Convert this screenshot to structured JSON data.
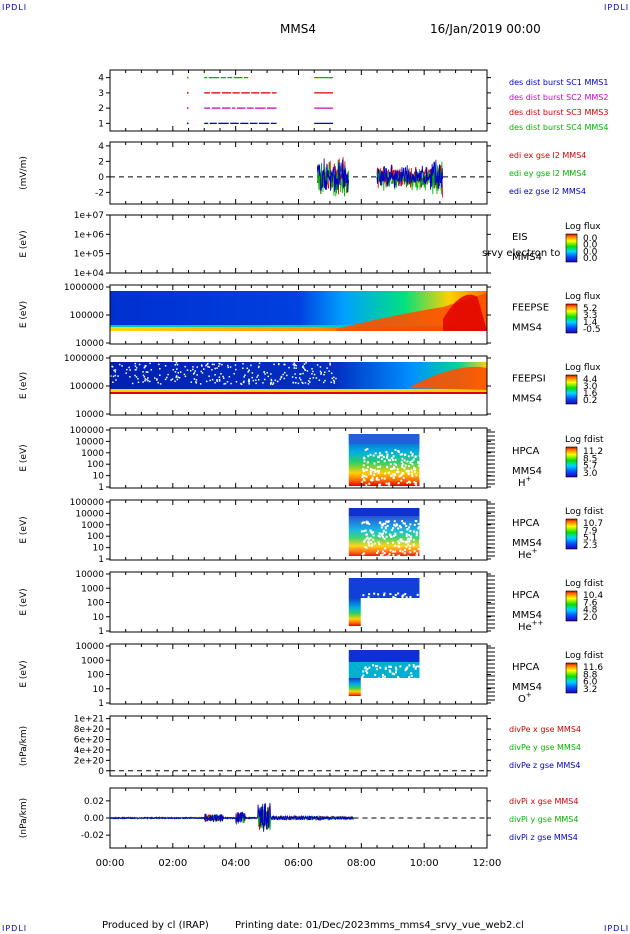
{
  "header": {
    "corner_label": "IPDLI",
    "title": "MMS4",
    "date_time": "16/Jan/2019 00:00"
  },
  "footer": {
    "produced_by": "Produced by cl (IRAP)",
    "printing_date": "Printing date: 01/Dec/2023",
    "filename": "mms_mms4_srvy_vue_web2.cl"
  },
  "colors": {
    "black": "#000000",
    "red": "#d40000",
    "green": "#00b400",
    "blue": "#0000c8",
    "magenta": "#d000d0",
    "dark_blue": "#000080"
  },
  "chart_data": [
    {
      "type": "line",
      "name": "burst-coverage",
      "yticks": [
        "4",
        "3",
        "2",
        "1"
      ],
      "ylim": [
        0.5,
        4.5
      ],
      "legend": [
        {
          "text": "des dist burst SC1 MMS1",
          "color": "#0000c8"
        },
        {
          "text": "des dist burst SC2 MMS2",
          "color": "#d000d0"
        },
        {
          "text": "des dist burst SC3 MMS3",
          "color": "#d40000"
        },
        {
          "text": "des dist burst SC4 MMS4",
          "color": "#00b400"
        }
      ],
      "series": [
        {
          "level": 4,
          "color": "#00b400",
          "intervals": [
            [
              2.45,
              2.46
            ],
            [
              3.0,
              4.4
            ],
            [
              6.5,
              7.1
            ]
          ]
        },
        {
          "level": 3,
          "color": "#d40000",
          "intervals": [
            [
              2.45,
              2.46
            ],
            [
              3.0,
              5.3
            ],
            [
              6.5,
              7.1
            ]
          ]
        },
        {
          "level": 2,
          "color": "#d000d0",
          "intervals": [
            [
              2.45,
              2.46
            ],
            [
              3.0,
              5.3
            ],
            [
              6.5,
              7.1
            ]
          ]
        },
        {
          "level": 1,
          "color": "#0000c8",
          "intervals": [
            [
              2.45,
              2.46
            ],
            [
              3.0,
              5.3
            ],
            [
              6.5,
              7.1
            ]
          ]
        }
      ]
    },
    {
      "type": "line",
      "name": "edi-e-field",
      "ylabel": "(mV/m)",
      "yticks": [
        "4",
        "2",
        "0",
        "-2"
      ],
      "ylim": [
        -3.5,
        4.5
      ],
      "legend": [
        {
          "text": "edi ex gse l2 MMS4",
          "color": "#d40000"
        },
        {
          "text": "edi ey gse l2 MMS4",
          "color": "#00b400"
        },
        {
          "text": "edi ez gse l2 MMS4",
          "color": "#0000c8"
        }
      ]
    },
    {
      "type": "heatmap",
      "name": "eis",
      "ylabel": "E (eV)",
      "yticks": [
        "1e+07",
        "1e+06",
        "1e+05",
        "1e+04"
      ],
      "label_lines": [
        "EIS",
        "MMS4"
      ],
      "overlap_text": "srvy electron to",
      "colorbar_title": "Log flux",
      "colorbar_ticks": [
        "0.0",
        "0.0",
        "0.0",
        "0.0"
      ]
    },
    {
      "type": "heatmap",
      "name": "feepse",
      "ylabel": "E (eV)",
      "yticks": [
        "1000000",
        "100000",
        "10000"
      ],
      "label_lines": [
        "FEEPSE",
        "MMS4"
      ],
      "colorbar_title": "Log flux",
      "colorbar_ticks": [
        "5.2",
        "3.3",
        "1.4",
        "-0.5"
      ]
    },
    {
      "type": "heatmap",
      "name": "feepsi",
      "ylabel": "E (eV)",
      "yticks": [
        "1000000",
        "100000",
        "10000"
      ],
      "label_lines": [
        "FEEPSI",
        "MMS4"
      ],
      "colorbar_title": "Log flux",
      "colorbar_ticks": [
        "4.4",
        "3.0",
        "1.6",
        "0.2"
      ]
    },
    {
      "type": "heatmap",
      "name": "hpca-h",
      "ylabel": "E (eV)",
      "yticks": [
        "100000",
        "10000",
        "1000",
        "100",
        "10",
        "1"
      ],
      "label_lines": [
        "HPCA",
        "MMS4"
      ],
      "species": "H",
      "species_sup": "+",
      "colorbar_title": "Log fdist",
      "colorbar_ticks": [
        "11.2",
        "8.5",
        "5.7",
        "3.0"
      ]
    },
    {
      "type": "heatmap",
      "name": "hpca-he",
      "ylabel": "E (eV)",
      "yticks": [
        "100000",
        "10000",
        "1000",
        "100",
        "10",
        "1"
      ],
      "label_lines": [
        "HPCA",
        "MMS4"
      ],
      "species": "He",
      "species_sup": "+",
      "colorbar_title": "Log fdist",
      "colorbar_ticks": [
        "10.7",
        "7.9",
        "5.1",
        "2.3"
      ]
    },
    {
      "type": "heatmap",
      "name": "hpca-hepp",
      "ylabel": "E (eV)",
      "yticks": [
        "10000",
        "1000",
        "100",
        "10",
        "1"
      ],
      "label_lines": [
        "HPCA",
        "MMS4"
      ],
      "species": "He",
      "species_sup": "++",
      "colorbar_title": "Log fdist",
      "colorbar_ticks": [
        "10.4",
        "7.6",
        "4.8",
        "2.0"
      ]
    },
    {
      "type": "heatmap",
      "name": "hpca-o",
      "ylabel": "E (eV)",
      "yticks": [
        "10000",
        "1000",
        "100",
        "10",
        "1"
      ],
      "label_lines": [
        "HPCA",
        "MMS4"
      ],
      "species": "O",
      "species_sup": "+",
      "colorbar_title": "Log fdist",
      "colorbar_ticks": [
        "11.6",
        "8.8",
        "6.0",
        "3.2"
      ]
    },
    {
      "type": "line",
      "name": "div-pe",
      "ylabel": "(nPa/km)",
      "yticks": [
        "1e+21",
        "8e+20",
        "6e+20",
        "4e+20",
        "2e+20",
        "0"
      ],
      "ylim": [
        -1e+20,
        1.05e+21
      ],
      "legend": [
        {
          "text": "divPe x gse MMS4",
          "color": "#d40000"
        },
        {
          "text": "divPe y gse MMS4",
          "color": "#00b400"
        },
        {
          "text": "divPe z gse MMS4",
          "color": "#0000c8"
        }
      ]
    },
    {
      "type": "line",
      "name": "div-pi",
      "ylabel": "(nPa/km)",
      "yticks": [
        "0.02",
        "0.00",
        "-0.02"
      ],
      "ylim": [
        -0.035,
        0.035
      ],
      "legend": [
        {
          "text": "divPi x gse MMS4",
          "color": "#d40000"
        },
        {
          "text": "divPi y gse MMS4",
          "color": "#00b400"
        },
        {
          "text": "divPi z gse MMS4",
          "color": "#0000c8"
        }
      ],
      "xticks": [
        "00:00",
        "02:00",
        "04:00",
        "06:00",
        "08:00",
        "10:00",
        "12:00"
      ],
      "xlim": [
        0,
        12
      ]
    }
  ]
}
